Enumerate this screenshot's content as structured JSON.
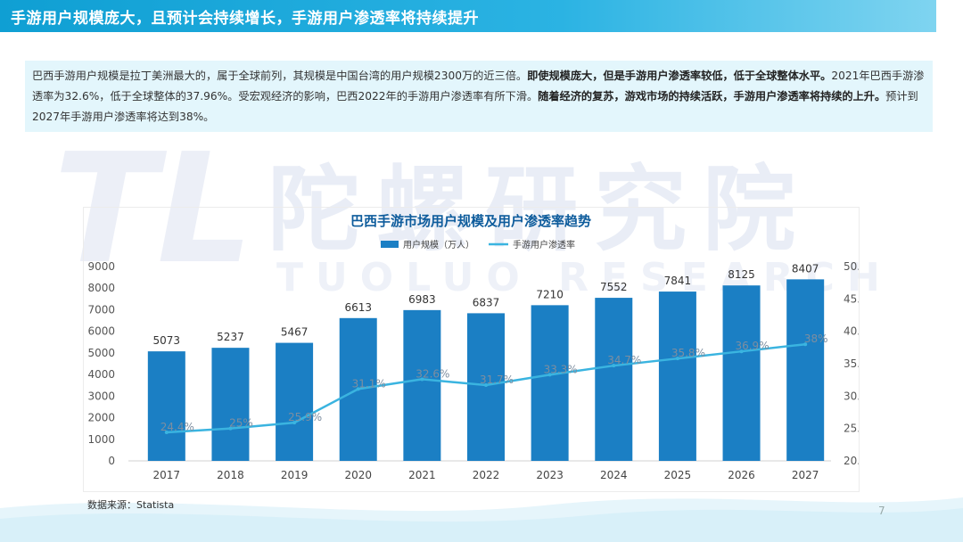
{
  "header": {
    "title": "手游用户规模庞大，且预计会持续增长，手游用户渗透率将持续提升"
  },
  "description": {
    "part1": "巴西手游用户规模是拉丁美洲最大的，属于全球前列，其规模是中国台湾的用户规模2300万的近三倍。",
    "part2_bold": "即使规模庞大，但是手游用户渗透率较低，低于全球整体水平。",
    "part3": "2021年巴西手游渗透率为32.6%，低于全球整体的37.96%。受宏观经济的影响，巴西2022年的手游用户渗透率有所下滑。",
    "part4_bold": "随着经济的复苏，游戏市场的持续活跃，手游用户渗透率将持续的上升。",
    "part5": "预计到2027年手游用户渗透率将达到38%。"
  },
  "watermark": {
    "logo": "TL",
    "cn": "陀螺研究院",
    "en": "TUOLUO RESEARCH"
  },
  "colors": {
    "bar": "#1b7fc4",
    "line": "#3ab4e0",
    "title_bar": "#0f9fd3"
  },
  "chart_data": {
    "type": "bar",
    "title": "巴西手游市场用户规模及用户渗透率趋势",
    "categories": [
      "2017",
      "2018",
      "2019",
      "2020",
      "2021",
      "2022",
      "2023",
      "2024",
      "2025",
      "2026",
      "2027"
    ],
    "series": [
      {
        "name": "用户规模（万人）",
        "type": "bar",
        "axis": "left",
        "values": [
          5073,
          5237,
          5467,
          6613,
          6983,
          6837,
          7210,
          7552,
          7841,
          8125,
          8407
        ],
        "labels": [
          "5073",
          "5237",
          "5467",
          "6613",
          "6983",
          "6837",
          "7210",
          "7552",
          "7841",
          "8125",
          "8407"
        ]
      },
      {
        "name": "手游用户渗透率",
        "type": "line",
        "axis": "right",
        "values": [
          24.4,
          25.0,
          25.9,
          31.1,
          32.6,
          31.7,
          33.3,
          34.7,
          35.8,
          36.9,
          38.0
        ],
        "labels": [
          "24.4%",
          "25%",
          "25.9%",
          "31.1%",
          "32.6%",
          "31.7%",
          "33.3%",
          "34.7%",
          "35.8%",
          "36.9%",
          "38%"
        ]
      }
    ],
    "ylim_left": [
      0,
      9000
    ],
    "yticks_left": [
      "0",
      "1000",
      "2000",
      "3000",
      "4000",
      "5000",
      "6000",
      "7000",
      "8000",
      "9000"
    ],
    "ylim_right": [
      20,
      50
    ],
    "yticks_right": [
      "20.0%",
      "25.0%",
      "30.0%",
      "35.0%",
      "40.0%",
      "45.0%",
      "50.0%"
    ],
    "legend_position": "top-center",
    "grid": false
  },
  "footer": {
    "source": "数据来源：Statista",
    "page_number": "7"
  }
}
